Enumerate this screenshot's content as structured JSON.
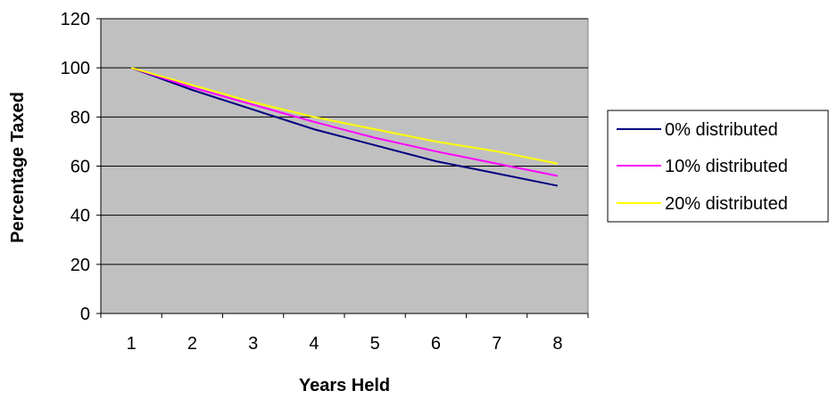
{
  "chart_data": {
    "type": "line",
    "xlabel": "Years Held",
    "ylabel": "Percentage Taxed",
    "categories": [
      "1",
      "2",
      "3",
      "4",
      "5",
      "6",
      "7",
      "8"
    ],
    "ylim": [
      0,
      120
    ],
    "yticks": [
      "0",
      "20",
      "40",
      "60",
      "80",
      "100",
      "120"
    ],
    "grid": true,
    "legend_position": "right",
    "plot_background": "#c0c0c0",
    "series": [
      {
        "name": "0% distributed",
        "color": "#000080",
        "values": [
          100,
          91,
          83,
          75,
          68.5,
          62,
          57,
          52
        ]
      },
      {
        "name": "10% distributed",
        "color": "#ff00ff",
        "values": [
          100,
          92,
          85,
          78,
          71.5,
          66,
          61,
          56
        ]
      },
      {
        "name": "20% distributed",
        "color": "#ffff00",
        "values": [
          100,
          93,
          86,
          80,
          75,
          70,
          66,
          61
        ]
      }
    ]
  }
}
